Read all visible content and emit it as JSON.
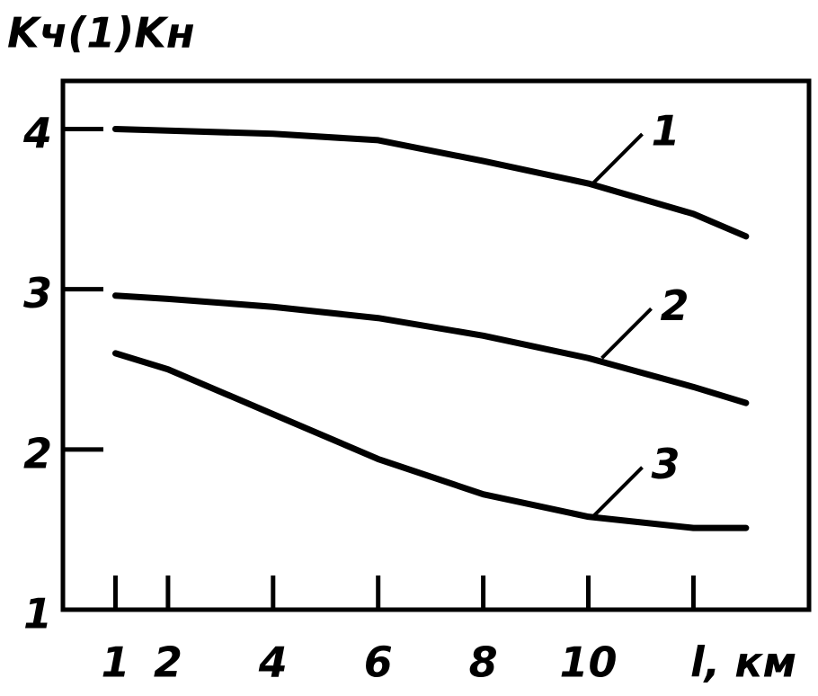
{
  "chart_data": {
    "type": "line",
    "y_label": "Kч(1)Kн",
    "x_label": "l, км",
    "x": [
      1,
      2,
      4,
      6,
      8,
      10,
      12,
      13
    ],
    "series": [
      {
        "name": "1",
        "color": "#000000",
        "values": [
          4.0,
          3.99,
          3.97,
          3.93,
          3.8,
          3.66,
          3.47,
          3.33
        ]
      },
      {
        "name": "2",
        "color": "#000000",
        "values": [
          2.96,
          2.94,
          2.89,
          2.82,
          2.71,
          2.57,
          2.39,
          2.29
        ]
      },
      {
        "name": "3",
        "color": "#000000",
        "values": [
          2.6,
          2.5,
          2.22,
          1.94,
          1.72,
          1.58,
          1.51,
          1.51
        ]
      }
    ],
    "xlim": [
      0,
      14.2
    ],
    "ylim": [
      1,
      4.3
    ],
    "xticks": [
      1,
      2,
      4,
      6,
      8,
      10,
      {
        "value": 12,
        "label": null
      }
    ],
    "yticks": [
      1,
      2,
      3,
      4
    ],
    "grid": false
  }
}
